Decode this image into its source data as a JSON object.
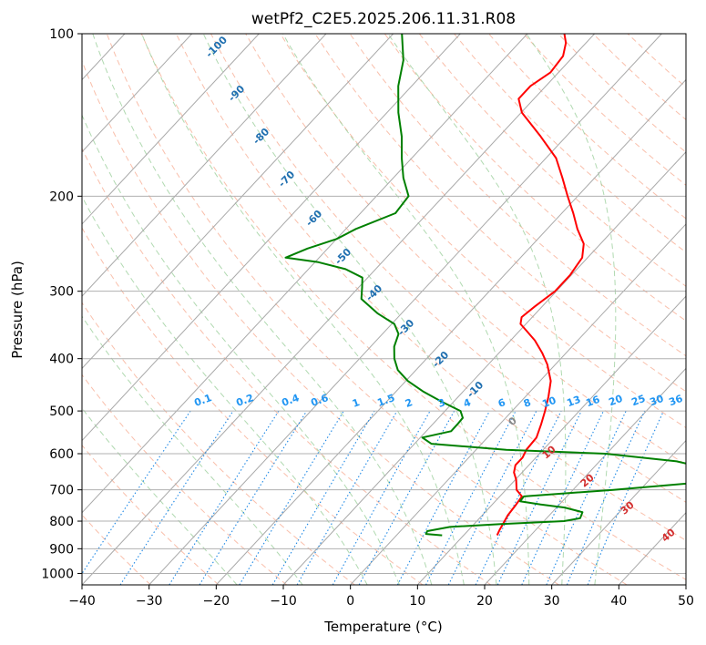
{
  "chart_data": {
    "type": "line",
    "title": "wetPf2_C2E5.2025.206.11.31.R08",
    "xlabel": "Temperature (°C)",
    "ylabel": "Pressure (hPa)",
    "xlim": [
      -40,
      50
    ],
    "ylim": [
      1050,
      100
    ],
    "y_scale": "log",
    "skew": "skew-T log-p diagram",
    "grid": true,
    "x_ticks": [
      "−40",
      "−30",
      "−20",
      "−10",
      "0",
      "10",
      "20",
      "30",
      "40",
      "50"
    ],
    "y_ticks": [
      "100",
      "200",
      "300",
      "400",
      "500",
      "600",
      "700",
      "800",
      "900",
      "1000"
    ],
    "series": [
      {
        "color": "#ff0000",
        "points": [
          [
            850,
            15.0
          ],
          [
            830,
            14.6
          ],
          [
            810,
            14.3
          ],
          [
            780,
            13.8
          ],
          [
            750,
            13.6
          ],
          [
            720,
            13.3
          ],
          [
            700,
            11.6
          ],
          [
            670,
            10.1
          ],
          [
            650,
            8.8
          ],
          [
            630,
            8.0
          ],
          [
            610,
            8.0
          ],
          [
            590,
            7.5
          ],
          [
            560,
            7.3
          ],
          [
            530,
            6.2
          ],
          [
            500,
            4.9
          ],
          [
            470,
            3.4
          ],
          [
            440,
            1.6
          ],
          [
            410,
            -1.2
          ],
          [
            390,
            -3.6
          ],
          [
            370,
            -6.4
          ],
          [
            355,
            -9.0
          ],
          [
            345,
            -10.8
          ],
          [
            335,
            -11.6
          ],
          [
            320,
            -11.1
          ],
          [
            300,
            -10.2
          ],
          [
            280,
            -10.2
          ],
          [
            260,
            -10.8
          ],
          [
            245,
            -12.5
          ],
          [
            230,
            -15.5
          ],
          [
            215,
            -18.3
          ],
          [
            200,
            -21.5
          ],
          [
            185,
            -24.8
          ],
          [
            170,
            -28.5
          ],
          [
            155,
            -33.8
          ],
          [
            140,
            -39.9
          ],
          [
            132,
            -42.3
          ],
          [
            125,
            -42.3
          ],
          [
            118,
            -41.2
          ],
          [
            110,
            -41.6
          ],
          [
            104,
            -43.0
          ],
          [
            100,
            -44.5
          ]
        ]
      },
      {
        "color": "#008000",
        "points": [
          [
            850,
            6.8
          ],
          [
            845,
            4.2
          ],
          [
            835,
            4.0
          ],
          [
            820,
            6.8
          ],
          [
            810,
            14.0
          ],
          [
            800,
            23.0
          ],
          [
            790,
            25.0
          ],
          [
            770,
            24.5
          ],
          [
            755,
            21.2
          ],
          [
            745,
            17.2
          ],
          [
            735,
            13.7
          ],
          [
            720,
            13.6
          ],
          [
            700,
            26.0
          ],
          [
            680,
            36.9
          ],
          [
            660,
            39.4
          ],
          [
            640,
            37.3
          ],
          [
            620,
            31.5
          ],
          [
            600,
            19.8
          ],
          [
            590,
            4.5
          ],
          [
            575,
            -7.5
          ],
          [
            560,
            -9.7
          ],
          [
            545,
            -6.3
          ],
          [
            530,
            -6.3
          ],
          [
            515,
            -6.4
          ],
          [
            500,
            -7.7
          ],
          [
            480,
            -11.9
          ],
          [
            460,
            -16.0
          ],
          [
            440,
            -19.7
          ],
          [
            420,
            -22.7
          ],
          [
            400,
            -24.8
          ],
          [
            380,
            -26.5
          ],
          [
            360,
            -27.6
          ],
          [
            345,
            -29.6
          ],
          [
            330,
            -33.5
          ],
          [
            310,
            -38.0
          ],
          [
            295,
            -39.5
          ],
          [
            283,
            -40.8
          ],
          [
            273,
            -44.5
          ],
          [
            265,
            -49.5
          ],
          [
            260,
            -55.0
          ],
          [
            250,
            -53.0
          ],
          [
            240,
            -50.0
          ],
          [
            230,
            -48.5
          ],
          [
            215,
            -44.8
          ],
          [
            200,
            -45.2
          ],
          [
            185,
            -48.5
          ],
          [
            170,
            -51.5
          ],
          [
            155,
            -54.5
          ],
          [
            140,
            -58.3
          ],
          [
            125,
            -62.0
          ],
          [
            112,
            -64.8
          ],
          [
            100,
            -68.7
          ]
        ]
      }
    ],
    "dry_adiabat_labels": [
      "-100",
      "-90",
      "-80",
      "-70",
      "-60",
      "-50",
      "-40",
      "-30",
      "-20",
      "-10"
    ],
    "mixing_ratio_labels": [
      "0.1",
      "0.2",
      "0.4",
      "0.6",
      "1",
      "1.5",
      "2",
      "3",
      "4",
      "6",
      "8",
      "10",
      "13",
      "16",
      "20",
      "25",
      "30",
      "36"
    ],
    "moist_adiabat_labels": [
      "0",
      "10",
      "20",
      "30",
      "40"
    ],
    "colors": {
      "temperature": "#ff0000",
      "dewpoint": "#008000",
      "isotherm": "#a9a9a9",
      "dry_adiabat": "#f7a98f",
      "moist_adiabat": "#9ccf9c",
      "mixing_ratio": "#1e88e5",
      "dry_label": "#1f6fb0",
      "moist_label": "#d32f2f",
      "mixing_label": "#2196f3"
    }
  }
}
